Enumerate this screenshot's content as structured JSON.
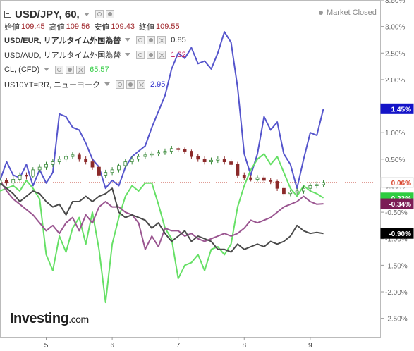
{
  "header": {
    "symbol": "USD/JPY, 60,",
    "ohlc": [
      {
        "label": "始値",
        "value": "109.45"
      },
      {
        "label": "高値",
        "value": "109.56"
      },
      {
        "label": "安値",
        "value": "109.43"
      },
      {
        "label": "終値",
        "value": "109.55"
      }
    ],
    "market_status": "Market Closed"
  },
  "comparisons": [
    {
      "name": "USD/EUR, リアルタイム外国為替",
      "value": "0.85",
      "color": "#2c2c2c"
    },
    {
      "name": "USD/AUD, リアルタイム外国為替",
      "value": "1.32",
      "color": "#c2185b"
    },
    {
      "name": "CL, (CFD)",
      "value": "65.57",
      "color": "#2ecc40"
    },
    {
      "name": "US10YT=RR, ニューヨーク",
      "value": "2.95",
      "color": "#3333cc"
    }
  ],
  "logo": {
    "main": "Investing",
    "suffix": ".com"
  },
  "chart_data": {
    "type": "line",
    "x_ticks": [
      {
        "label": "5",
        "t": 7
      },
      {
        "label": "6",
        "t": 17
      },
      {
        "label": "7",
        "t": 27
      },
      {
        "label": "8",
        "t": 37
      },
      {
        "label": "9",
        "t": 47
      }
    ],
    "x_range": [
      0,
      57.7
    ],
    "y_ticks": [
      "3.50%",
      "3.00%",
      "2.50%",
      "2.00%",
      "1.50%",
      "1.00%",
      "0.50%",
      "0.00%",
      "-0.50%",
      "-1.00%",
      "-1.50%",
      "-2.00%",
      "-2.50%"
    ],
    "y_tick_values": [
      3.5,
      3.0,
      2.5,
      2.0,
      1.5,
      1.0,
      0.5,
      0.0,
      -0.5,
      -1.0,
      -1.5,
      -2.0,
      -2.5
    ],
    "ylim": [
      -2.85,
      3.5
    ],
    "reference_line": 0.06,
    "price_labels": [
      {
        "text": "1.45%",
        "value": 1.45,
        "bg": "#1414c8",
        "fg": "#ffffff"
      },
      {
        "text": "0.06%",
        "value": 0.06,
        "bg": "#ffffff",
        "fg": "#d9462e"
      },
      {
        "text": "-0.23%",
        "value": -0.23,
        "bg": "#2ecc40",
        "fg": "#ffffff"
      },
      {
        "text": "-0.34%",
        "value": -0.34,
        "bg": "#7b1d55",
        "fg": "#ffffff"
      },
      {
        "text": "-0.90%",
        "value": -0.9,
        "bg": "#000000",
        "fg": "#ffffff"
      }
    ],
    "series": [
      {
        "color": "#5555cc",
        "x": [
          0,
          1,
          2,
          3,
          4,
          5,
          6,
          7,
          8,
          9,
          10,
          11,
          12,
          13,
          14,
          15,
          16,
          17,
          18,
          19,
          20,
          21,
          22,
          23,
          24,
          25,
          26,
          27,
          28,
          29,
          30,
          31,
          32,
          33,
          34,
          35,
          36,
          37,
          38,
          39,
          40,
          41,
          42,
          43,
          44,
          45,
          46,
          47,
          48,
          49
        ],
        "y": [
          0.1,
          0.45,
          0.2,
          0.15,
          0.4,
          0.0,
          0.3,
          0.05,
          0.25,
          1.35,
          1.3,
          1.1,
          1.05,
          0.8,
          0.5,
          0.35,
          -0.05,
          0.1,
          0.0,
          0.35,
          0.55,
          0.65,
          0.75,
          1.1,
          1.4,
          1.7,
          2.2,
          2.5,
          2.4,
          2.6,
          2.3,
          2.35,
          2.2,
          2.5,
          2.9,
          2.7,
          1.85,
          0.6,
          0.2,
          0.6,
          1.3,
          1.05,
          1.2,
          0.6,
          0.4,
          -0.05,
          0.5,
          1.0,
          0.95,
          1.45
        ]
      },
      {
        "color": "#66e066",
        "x": [
          0,
          1,
          2,
          3,
          4,
          5,
          6,
          7,
          8,
          9,
          10,
          11,
          12,
          13,
          14,
          15,
          16,
          17,
          18,
          19,
          20,
          21,
          22,
          23,
          24,
          25,
          26,
          27,
          28,
          29,
          30,
          31,
          32,
          33,
          34,
          35,
          36,
          37,
          38,
          39,
          40,
          41,
          42,
          43,
          44,
          45,
          46,
          47,
          48,
          49
        ],
        "y": [
          -0.1,
          -0.05,
          0.0,
          -0.1,
          0.1,
          -0.05,
          -0.25,
          -1.3,
          -1.6,
          -0.95,
          -1.25,
          -0.8,
          -0.6,
          -1.1,
          -0.5,
          -1.2,
          -2.2,
          -1.1,
          -0.6,
          -0.2,
          0.0,
          -0.1,
          0.05,
          0.05,
          -0.35,
          -0.8,
          -1.0,
          -1.75,
          -1.5,
          -1.45,
          -1.3,
          -1.6,
          -1.2,
          -1.15,
          -1.3,
          -1.1,
          -0.4,
          0.0,
          0.3,
          0.5,
          0.6,
          0.4,
          0.55,
          0.25,
          -0.05,
          -0.2,
          0.0,
          -0.1,
          -0.15,
          -0.23
        ]
      },
      {
        "color": "#9a5590",
        "x": [
          0,
          1,
          2,
          3,
          4,
          5,
          6,
          7,
          8,
          9,
          10,
          11,
          12,
          13,
          14,
          15,
          16,
          17,
          18,
          19,
          20,
          21,
          22,
          23,
          24,
          25,
          26,
          27,
          28,
          29,
          30,
          31,
          32,
          33,
          34,
          35,
          36,
          37,
          38,
          39,
          40,
          41,
          42,
          43,
          44,
          45,
          46,
          47,
          48,
          49
        ],
        "y": [
          0.1,
          -0.1,
          -0.25,
          -0.35,
          -0.45,
          -0.55,
          -0.7,
          -0.85,
          -0.75,
          -0.9,
          -0.7,
          -0.6,
          -0.85,
          -0.55,
          -0.7,
          -0.4,
          -0.3,
          -0.4,
          -0.4,
          -0.5,
          -0.55,
          -0.7,
          -1.2,
          -0.95,
          -1.15,
          -0.8,
          -0.85,
          -0.85,
          -0.95,
          -0.9,
          -1.0,
          -1.05,
          -1.0,
          -0.95,
          -0.9,
          -0.95,
          -0.9,
          -0.8,
          -0.65,
          -0.7,
          -0.65,
          -0.6,
          -0.5,
          -0.4,
          -0.35,
          -0.3,
          -0.2,
          -0.3,
          -0.35,
          -0.34
        ]
      },
      {
        "color": "#4a4a4a",
        "x": [
          0,
          1,
          2,
          3,
          4,
          5,
          6,
          7,
          8,
          9,
          10,
          11,
          12,
          13,
          14,
          15,
          16,
          17,
          18,
          19,
          20,
          21,
          22,
          23,
          24,
          25,
          26,
          27,
          28,
          29,
          30,
          31,
          32,
          33,
          34,
          35,
          36,
          37,
          38,
          39,
          40,
          41,
          42,
          43,
          44,
          45,
          46,
          47,
          48,
          49
        ],
        "y": [
          0.05,
          -0.05,
          -0.15,
          -0.3,
          -0.2,
          -0.1,
          -0.15,
          -0.3,
          -0.4,
          -0.35,
          -0.55,
          -0.3,
          -0.3,
          -0.2,
          -0.3,
          -0.2,
          -0.15,
          -0.05,
          -0.5,
          -0.6,
          -0.55,
          -0.6,
          -0.65,
          -0.8,
          -0.7,
          -0.9,
          -1.05,
          -0.95,
          -0.85,
          -1.05,
          -0.95,
          -1.0,
          -1.05,
          -1.2,
          -1.2,
          -1.25,
          -1.1,
          -1.2,
          -1.15,
          -1.1,
          -1.15,
          -1.05,
          -1.1,
          -1.05,
          -0.95,
          -0.75,
          -0.85,
          -0.9,
          -0.88,
          -0.9
        ]
      }
    ],
    "candles": {
      "x_start": 0,
      "x_step": 1,
      "open": [
        0.05,
        0.1,
        0.05,
        0.12,
        0.2,
        0.18,
        0.3,
        0.35,
        0.4,
        0.45,
        0.5,
        0.55,
        0.58,
        0.5,
        0.45,
        0.35,
        0.2,
        0.25,
        0.3,
        0.38,
        0.45,
        0.5,
        0.55,
        0.58,
        0.6,
        0.62,
        0.65,
        0.7,
        0.68,
        0.65,
        0.55,
        0.5,
        0.45,
        0.48,
        0.5,
        0.45,
        0.4,
        0.2,
        0.15,
        0.12,
        0.15,
        0.1,
        0.08,
        -0.05,
        -0.15,
        -0.12,
        -0.1,
        -0.05,
        0.0,
        0.02
      ],
      "close": [
        0.1,
        0.05,
        0.12,
        0.2,
        0.18,
        0.3,
        0.35,
        0.4,
        0.45,
        0.5,
        0.55,
        0.58,
        0.5,
        0.45,
        0.35,
        0.2,
        0.25,
        0.3,
        0.38,
        0.45,
        0.5,
        0.55,
        0.58,
        0.6,
        0.62,
        0.65,
        0.7,
        0.68,
        0.65,
        0.55,
        0.5,
        0.45,
        0.48,
        0.5,
        0.45,
        0.4,
        0.2,
        0.15,
        0.12,
        0.15,
        0.1,
        0.08,
        -0.05,
        -0.15,
        -0.12,
        -0.1,
        -0.05,
        0.0,
        0.02,
        0.06
      ],
      "high": [
        0.15,
        0.15,
        0.18,
        0.25,
        0.25,
        0.35,
        0.4,
        0.45,
        0.5,
        0.55,
        0.6,
        0.63,
        0.62,
        0.55,
        0.5,
        0.4,
        0.3,
        0.35,
        0.42,
        0.5,
        0.55,
        0.6,
        0.63,
        0.65,
        0.67,
        0.7,
        0.75,
        0.73,
        0.72,
        0.68,
        0.6,
        0.55,
        0.53,
        0.55,
        0.55,
        0.5,
        0.45,
        0.25,
        0.2,
        0.2,
        0.2,
        0.15,
        0.12,
        0.0,
        -0.08,
        -0.05,
        0.0,
        0.05,
        0.08,
        0.1
      ],
      "low": [
        0.0,
        0.0,
        0.0,
        0.08,
        0.12,
        0.15,
        0.25,
        0.3,
        0.35,
        0.4,
        0.45,
        0.5,
        0.45,
        0.4,
        0.3,
        0.15,
        0.15,
        0.2,
        0.25,
        0.33,
        0.4,
        0.45,
        0.5,
        0.53,
        0.55,
        0.58,
        0.6,
        0.63,
        0.6,
        0.5,
        0.45,
        0.4,
        0.4,
        0.43,
        0.4,
        0.35,
        0.15,
        0.1,
        0.08,
        0.08,
        0.05,
        0.03,
        -0.1,
        -0.2,
        -0.2,
        -0.17,
        -0.15,
        -0.1,
        -0.05,
        -0.02
      ]
    }
  }
}
